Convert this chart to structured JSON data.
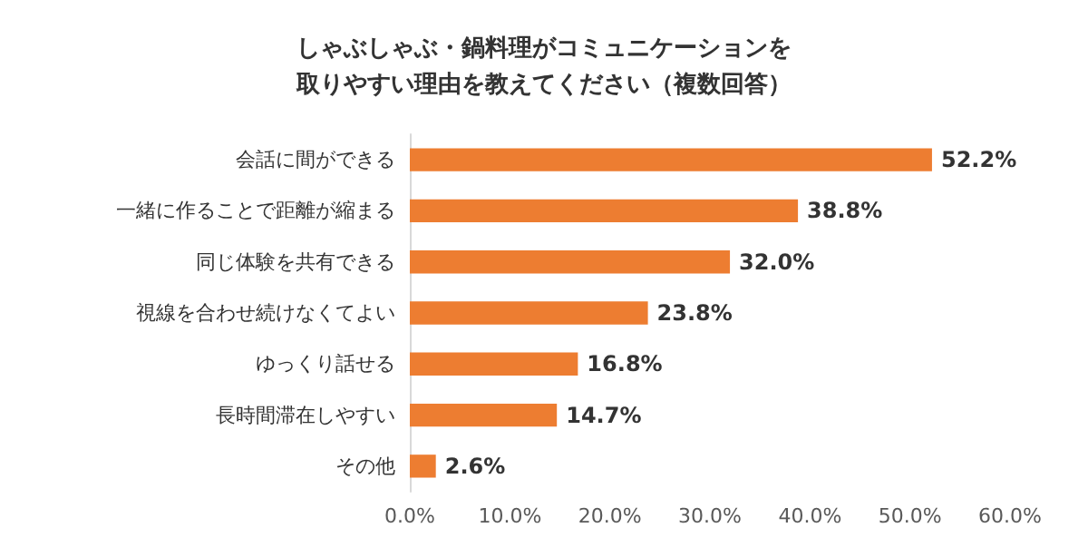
{
  "chart_data": {
    "type": "bar",
    "orientation": "horizontal",
    "title": "しゃぶしゃぶ・鍋料理がコミュニケーションを取りやすい理由を教えてください（複数回答）",
    "categories": [
      "会話に間ができる",
      "一緒に作ることで距離が縮まる",
      "同じ体験を共有できる",
      "視線を合わせ続けなくてよい",
      "ゆっくり話せる",
      "長時間滞在しやすい",
      "その他"
    ],
    "values": [
      52.2,
      38.8,
      32.0,
      23.8,
      16.8,
      14.7,
      2.6
    ],
    "value_labels": [
      "52.2%",
      "38.8%",
      "32.0%",
      "23.8%",
      "16.8%",
      "14.7%",
      "2.6%"
    ],
    "color": "#ed7d31",
    "xlim": [
      0,
      60
    ],
    "xticks": [
      {
        "value": 0,
        "label": "0.0%"
      },
      {
        "value": 10,
        "label": "10.0%"
      },
      {
        "value": 20,
        "label": "20.0%"
      },
      {
        "value": 30,
        "label": "30.0%"
      },
      {
        "value": 40,
        "label": "40.0%"
      },
      {
        "value": 50,
        "label": "50.0%"
      },
      {
        "value": 60,
        "label": "60.0%"
      }
    ],
    "grid": false
  }
}
